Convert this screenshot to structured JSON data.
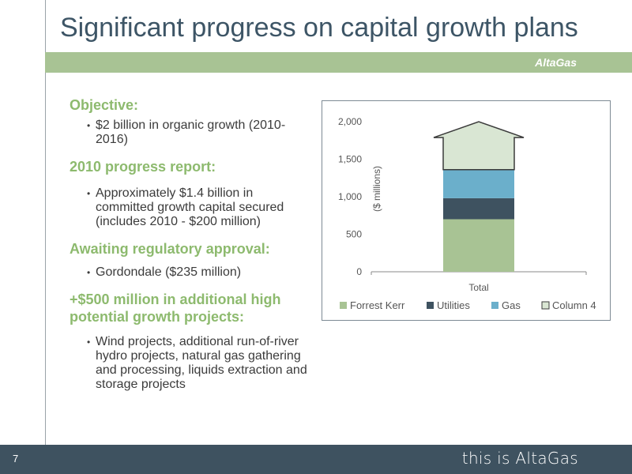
{
  "slide": {
    "title": "Significant progress on capital growth plans",
    "brand": "AltaGas",
    "page_number": "7",
    "tagline": "this is AltaGas"
  },
  "sections": [
    {
      "heading": "Objective:",
      "bullets": [
        "$2 billion in organic growth (2010-2016)"
      ]
    },
    {
      "heading": "2010 progress report:",
      "bullets": [
        "Approximately $1.4 billion in committed growth capital secured (includes 2010 - $200 million)"
      ]
    },
    {
      "heading": "Awaiting regulatory approval:",
      "bullets": [
        "Gordondale ($235 million)"
      ]
    },
    {
      "heading": "+$500 million in additional high potential growth projects:",
      "bullets": [
        "Wind projects, additional run-of-river hydro projects, natural gas gathering and processing, liquids extraction and storage projects"
      ]
    }
  ],
  "chart_data": {
    "type": "bar",
    "stacked": true,
    "categories": [
      "Total"
    ],
    "ylabel": "($ millions)",
    "ylim": [
      0,
      2000
    ],
    "yticks": [
      "0",
      "500",
      "1,000",
      "1,500",
      "2,000"
    ],
    "grid": false,
    "legend_position": "bottom",
    "series": [
      {
        "name": "Forrest Kerr",
        "values": [
          700
        ],
        "color": "#a8c394"
      },
      {
        "name": "Utilities",
        "values": [
          280
        ],
        "color": "#3e5260"
      },
      {
        "name": "Gas",
        "values": [
          380
        ],
        "color": "#6bafcb"
      },
      {
        "name": "Column 4",
        "values": [
          640
        ],
        "color": "#d9e6d3",
        "shape": "arrow"
      }
    ]
  }
}
